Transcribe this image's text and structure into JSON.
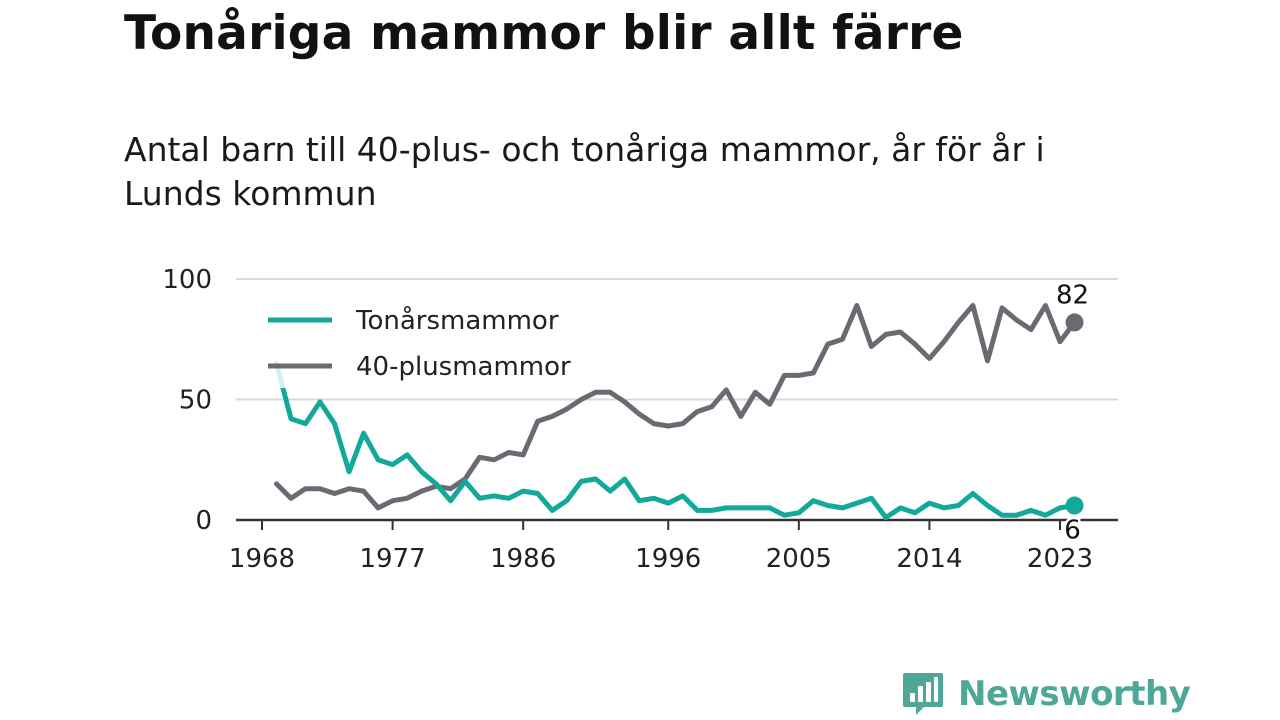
{
  "header": {
    "title": "Tonåriga mammor blir allt färre",
    "subtitle": "Antal barn till 40-plus- och tonåriga mammor, år för år i Lunds kommun"
  },
  "brand": {
    "name": "Newsworthy",
    "icon": "bar-chart-speech-bubble-icon"
  },
  "colors": {
    "teen": "#12a89a",
    "forty": "#6b6a72",
    "grid": "#d9d9d9",
    "axis": "#333333"
  },
  "chart_data": {
    "type": "line",
    "x_ticks": [
      "1968",
      "1977",
      "1986",
      "1996",
      "2005",
      "2014",
      "2023"
    ],
    "y_ticks": [
      "0",
      "50",
      "100"
    ],
    "ylim": [
      0,
      100
    ],
    "xlim": [
      1968,
      2024
    ],
    "grid": "horizontal",
    "legend_position": "top-left",
    "series": [
      {
        "name": "Tonårsmammor",
        "color": "#12a89a",
        "end_label": "6",
        "x": [
          1969,
          1970,
          1971,
          1972,
          1973,
          1974,
          1975,
          1976,
          1977,
          1978,
          1979,
          1980,
          1981,
          1982,
          1983,
          1984,
          1985,
          1986,
          1987,
          1988,
          1989,
          1990,
          1991,
          1992,
          1993,
          1994,
          1995,
          1996,
          1997,
          1998,
          1999,
          2000,
          2001,
          2002,
          2003,
          2004,
          2005,
          2006,
          2007,
          2008,
          2009,
          2010,
          2011,
          2012,
          2013,
          2014,
          2015,
          2016,
          2017,
          2018,
          2019,
          2020,
          2021,
          2022,
          2023,
          2024
        ],
        "y": [
          65,
          42,
          40,
          49,
          40,
          20,
          36,
          25,
          23,
          27,
          20,
          15,
          8,
          16,
          9,
          10,
          9,
          12,
          11,
          4,
          8,
          16,
          17,
          12,
          17,
          8,
          9,
          7,
          10,
          4,
          4,
          5,
          5,
          5,
          5,
          2,
          3,
          8,
          6,
          5,
          7,
          9,
          1,
          5,
          3,
          7,
          5,
          6,
          11,
          6,
          2,
          2,
          4,
          2,
          5,
          6
        ]
      },
      {
        "name": "40-plusmammor",
        "color": "#6b6a72",
        "end_label": "82",
        "x": [
          1969,
          1970,
          1971,
          1972,
          1973,
          1974,
          1975,
          1976,
          1977,
          1978,
          1979,
          1980,
          1981,
          1982,
          1983,
          1984,
          1985,
          1986,
          1987,
          1988,
          1989,
          1990,
          1991,
          1992,
          1993,
          1994,
          1995,
          1996,
          1997,
          1998,
          1999,
          2000,
          2001,
          2002,
          2003,
          2004,
          2005,
          2006,
          2007,
          2008,
          2009,
          2010,
          2011,
          2012,
          2013,
          2014,
          2015,
          2016,
          2017,
          2018,
          2019,
          2020,
          2021,
          2022,
          2023,
          2024
        ],
        "y": [
          15,
          9,
          13,
          13,
          11,
          13,
          12,
          5,
          8,
          9,
          12,
          14,
          13,
          17,
          26,
          25,
          28,
          27,
          41,
          43,
          46,
          50,
          53,
          53,
          49,
          44,
          40,
          39,
          40,
          45,
          47,
          54,
          43,
          53,
          48,
          60,
          60,
          61,
          73,
          75,
          89,
          72,
          77,
          78,
          73,
          67,
          74,
          82,
          89,
          66,
          88,
          83,
          79,
          89,
          74,
          82
        ]
      }
    ]
  }
}
